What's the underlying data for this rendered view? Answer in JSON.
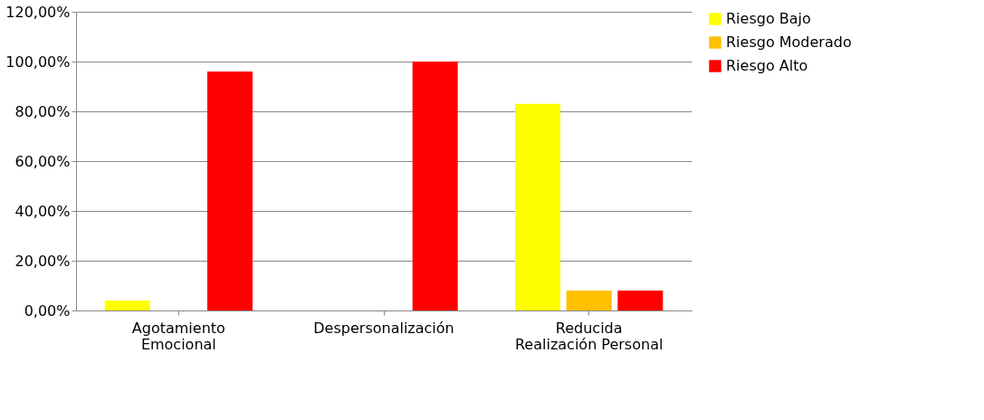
{
  "chart_data": {
    "type": "bar",
    "categories": [
      "Agotamiento Emocional",
      "Despersonalización",
      "Reducida Realización Personal"
    ],
    "series": [
      {
        "name": "Riesgo Bajo",
        "color": "#ffff00",
        "values": [
          4,
          0,
          83
        ]
      },
      {
        "name": "Riesgo Moderado",
        "color": "#ffc000",
        "values": [
          0,
          0,
          8
        ]
      },
      {
        "name": "Riesgo Alto",
        "color": "#ff0000",
        "values": [
          96,
          100,
          8
        ]
      }
    ],
    "ylim": [
      0,
      120
    ],
    "yticks": [
      {
        "value": 0,
        "label": "0,00%"
      },
      {
        "value": 20,
        "label": "20,00%"
      },
      {
        "value": 40,
        "label": "40,00%"
      },
      {
        "value": 60,
        "label": "60,00%"
      },
      {
        "value": 80,
        "label": "80,00%"
      },
      {
        "value": 100,
        "label": "100,00%"
      },
      {
        "value": 120,
        "label": "120,00%"
      }
    ],
    "grid": "y",
    "legend": "right"
  }
}
